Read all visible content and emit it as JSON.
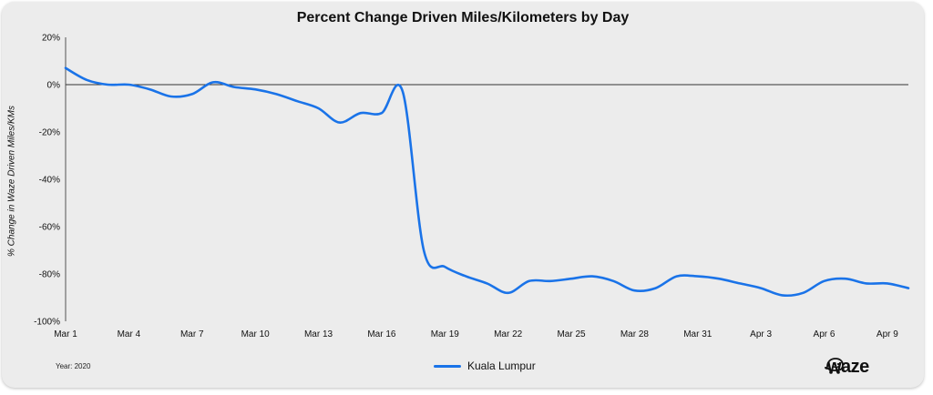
{
  "chart_data": {
    "type": "line",
    "title": "Percent Change Driven Miles/Kilometers by Day",
    "ylabel": "% Change in Waze Driven Miles/KMs",
    "xlabel": "",
    "ylim": [
      -100,
      20
    ],
    "yticks": [
      "20%",
      "0%",
      "-20%",
      "-40%",
      "-60%",
      "-80%",
      "-100%"
    ],
    "yticks_values": [
      20,
      0,
      -20,
      -40,
      -60,
      -80,
      -100
    ],
    "x_tick_labels": [
      "Mar 1",
      "Mar 4",
      "Mar 7",
      "Mar 10",
      "Mar 13",
      "Mar 16",
      "Mar 19",
      "Mar 22",
      "Mar 25",
      "Mar 28",
      "Mar 31",
      "Apr 3",
      "Apr 6",
      "Apr 9"
    ],
    "x": [
      "Mar 1",
      "Mar 2",
      "Mar 3",
      "Mar 4",
      "Mar 5",
      "Mar 6",
      "Mar 7",
      "Mar 8",
      "Mar 9",
      "Mar 10",
      "Mar 11",
      "Mar 12",
      "Mar 13",
      "Mar 14",
      "Mar 15",
      "Mar 16",
      "Mar 17",
      "Mar 18",
      "Mar 19",
      "Mar 20",
      "Mar 21",
      "Mar 22",
      "Mar 23",
      "Mar 24",
      "Mar 25",
      "Mar 26",
      "Mar 27",
      "Mar 28",
      "Mar 29",
      "Mar 30",
      "Mar 31",
      "Apr 1",
      "Apr 2",
      "Apr 3",
      "Apr 4",
      "Apr 5",
      "Apr 6",
      "Apr 7",
      "Apr 8",
      "Apr 9",
      "Apr 10"
    ],
    "series": [
      {
        "name": "Kuala Lumpur",
        "color": "#1a73e8",
        "values": [
          7,
          2,
          0,
          0,
          -2,
          -5,
          -4,
          1,
          -1,
          -2,
          -4,
          -7,
          -10,
          -16,
          -12,
          -12,
          -3,
          -70,
          -77,
          -81,
          -84,
          -88,
          -83,
          -83,
          -82,
          -81,
          -83,
          -87,
          -86,
          -81,
          -81,
          -82,
          -84,
          -86,
          -89,
          -88,
          -83,
          -82,
          -84,
          -84,
          -86
        ]
      }
    ],
    "grid": false,
    "legend_position": "bottom-center"
  },
  "footer": {
    "year_note": "Year: 2020",
    "legend_label": "Kuala Lumpur",
    "logo_text": "waze"
  },
  "colors": {
    "line": "#1a73e8",
    "card_background": "#ececec",
    "text": "#111111"
  }
}
